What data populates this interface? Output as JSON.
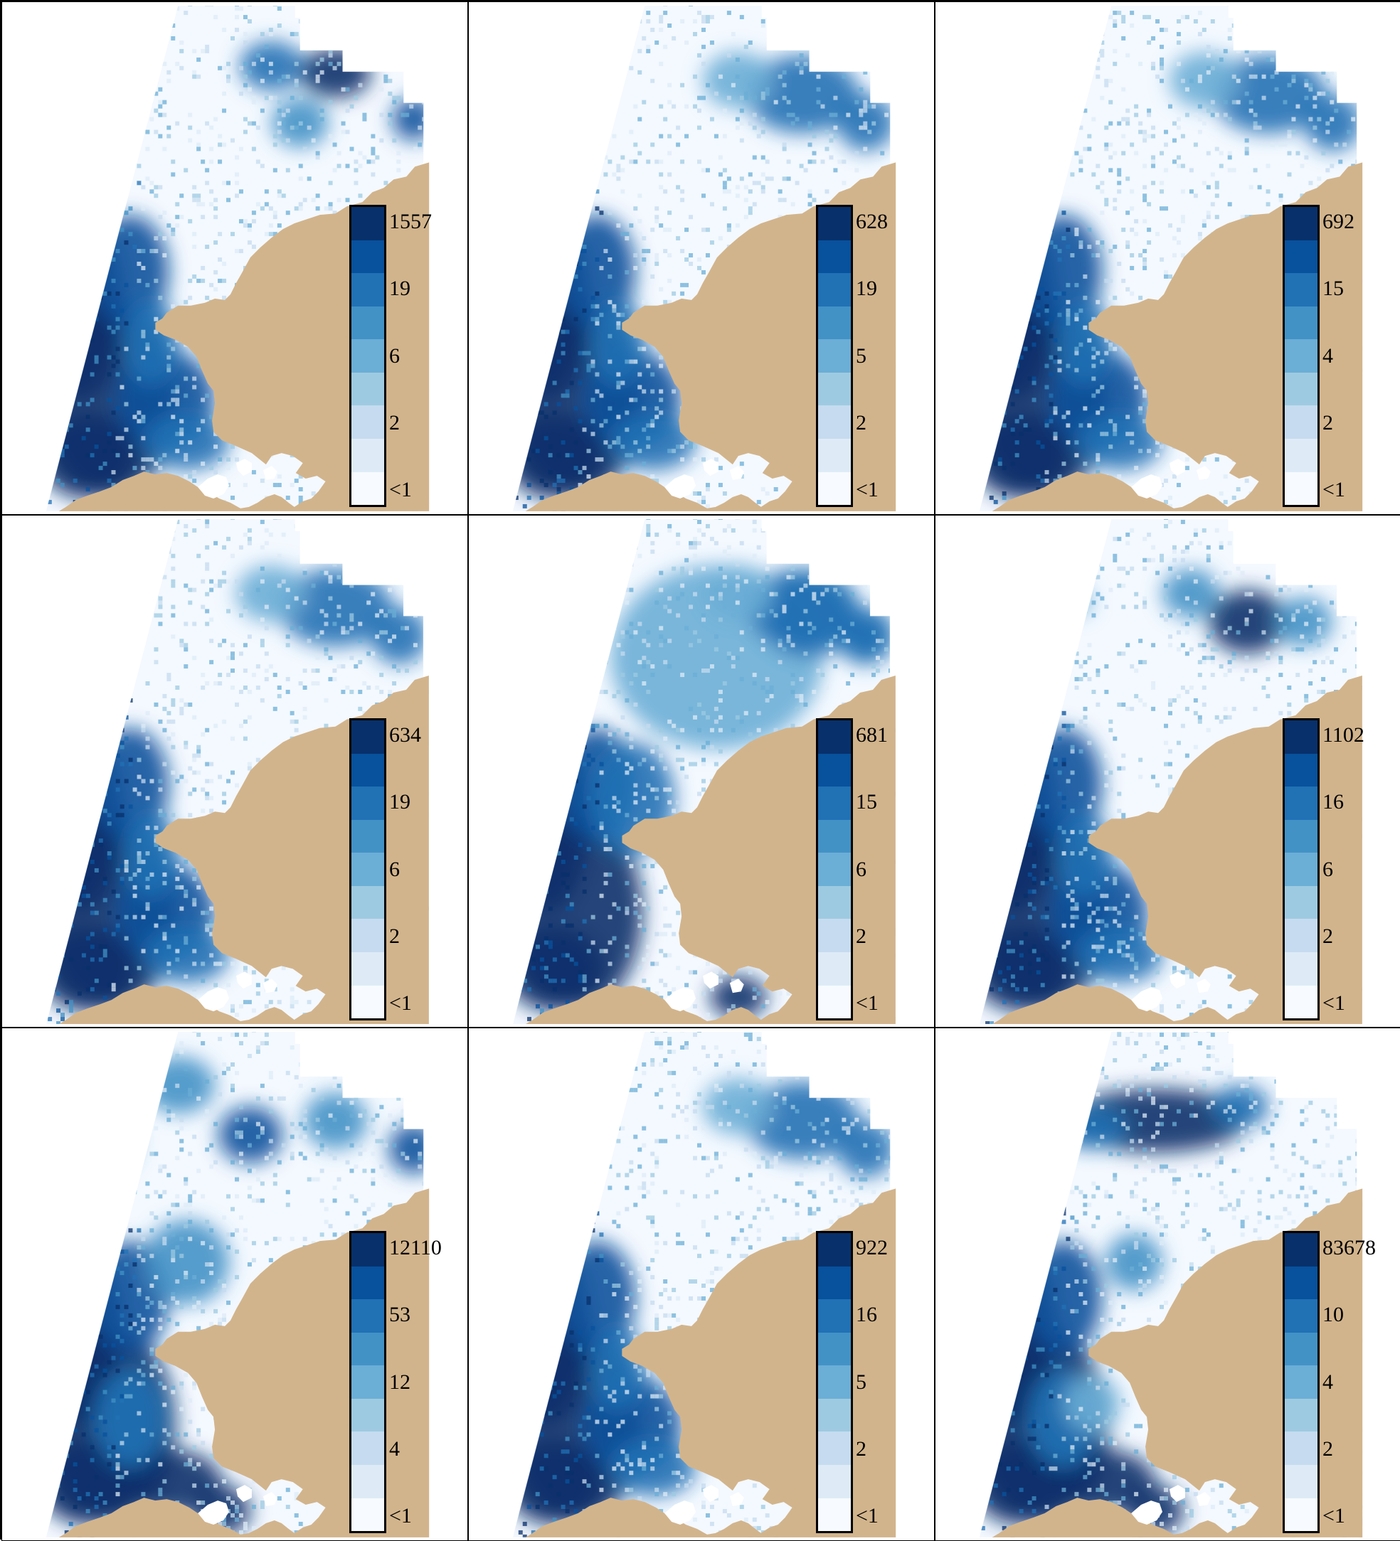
{
  "colors": {
    "land": "#d2b48c",
    "sea_background": "#f4f9ff",
    "ramp": [
      "#f7fbff",
      "#deebf7",
      "#c6dbef",
      "#9ecae1",
      "#6baed6",
      "#4292c6",
      "#2171b5",
      "#08519c",
      "#08306b"
    ]
  },
  "panels": [
    {
      "legend": {
        "labels": [
          "1557",
          "19",
          "6",
          "2",
          "<1"
        ]
      },
      "hotspots": [
        "west-coast",
        "south-west",
        "north-east-dense"
      ]
    },
    {
      "legend": {
        "labels": [
          "628",
          "19",
          "5",
          "2",
          "<1"
        ]
      },
      "hotspots": [
        "west-coast",
        "south-west",
        "north-east"
      ]
    },
    {
      "legend": {
        "labels": [
          "692",
          "15",
          "4",
          "2",
          "<1"
        ]
      },
      "hotspots": [
        "west-coast",
        "south-west",
        "north-east"
      ]
    },
    {
      "legend": {
        "labels": [
          "634",
          "19",
          "6",
          "2",
          "<1"
        ]
      },
      "hotspots": [
        "west-coast",
        "south-west",
        "north-east"
      ]
    },
    {
      "legend": {
        "labels": [
          "681",
          "15",
          "6",
          "2",
          "<1"
        ]
      },
      "hotspots": [
        "west-coast",
        "scattered",
        "north-east"
      ]
    },
    {
      "legend": {
        "labels": [
          "1102",
          "16",
          "6",
          "2",
          "<1"
        ]
      },
      "hotspots": [
        "west-coast",
        "south-west",
        "north-center-dense"
      ]
    },
    {
      "legend": {
        "labels": [
          "12110",
          "53",
          "12",
          "4",
          "<1"
        ]
      },
      "hotspots": [
        "west-coast",
        "south-bay-dense",
        "north-patches"
      ]
    },
    {
      "legend": {
        "labels": [
          "922",
          "16",
          "5",
          "2",
          "<1"
        ]
      },
      "hotspots": [
        "west-coast",
        "south-west",
        "north-east"
      ]
    },
    {
      "legend": {
        "labels": [
          "83678",
          "10",
          "4",
          "2",
          "<1"
        ]
      },
      "hotspots": [
        "west-coast",
        "south-bay-dense",
        "north-band-dense"
      ]
    }
  ]
}
